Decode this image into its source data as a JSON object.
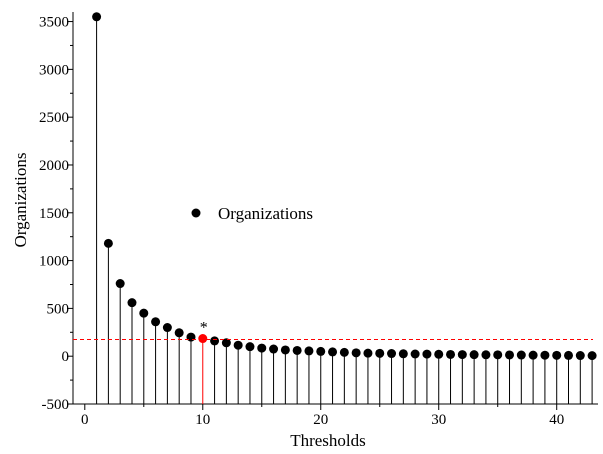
{
  "chart_data": {
    "type": "stem",
    "title": "",
    "xlabel": "Thresholds",
    "ylabel": "Organizations",
    "xlim": [
      -1,
      43.5
    ],
    "ylim": [
      -500,
      3600
    ],
    "xticks": [
      0,
      10,
      20,
      30,
      40
    ],
    "yticks": [
      -500,
      0,
      500,
      1000,
      1500,
      2000,
      2500,
      3000,
      3500
    ],
    "grid": false,
    "legend": {
      "position": "center-left",
      "entries": [
        "Organizations"
      ]
    },
    "series": [
      {
        "name": "Organizations",
        "color": "#000000",
        "x": [
          1,
          2,
          3,
          4,
          5,
          6,
          7,
          8,
          9,
          10,
          11,
          12,
          13,
          14,
          15,
          16,
          17,
          18,
          19,
          20,
          21,
          22,
          23,
          24,
          25,
          26,
          27,
          28,
          29,
          30,
          31,
          32,
          33,
          34,
          35,
          36,
          37,
          38,
          39,
          40,
          41,
          42,
          43
        ],
        "y": [
          3550,
          1180,
          760,
          560,
          450,
          360,
          300,
          245,
          200,
          185,
          160,
          140,
          115,
          100,
          85,
          75,
          65,
          60,
          55,
          50,
          45,
          40,
          35,
          32,
          30,
          28,
          25,
          23,
          22,
          20,
          18,
          17,
          16,
          15,
          14,
          13,
          12,
          11,
          10,
          9,
          8,
          7,
          6
        ]
      }
    ],
    "highlight": {
      "x": 10,
      "y": 185,
      "color": "#ff0000",
      "annotation": "*"
    },
    "reference_line": {
      "y": 175,
      "color": "#ff0000",
      "style": "dashed"
    }
  }
}
